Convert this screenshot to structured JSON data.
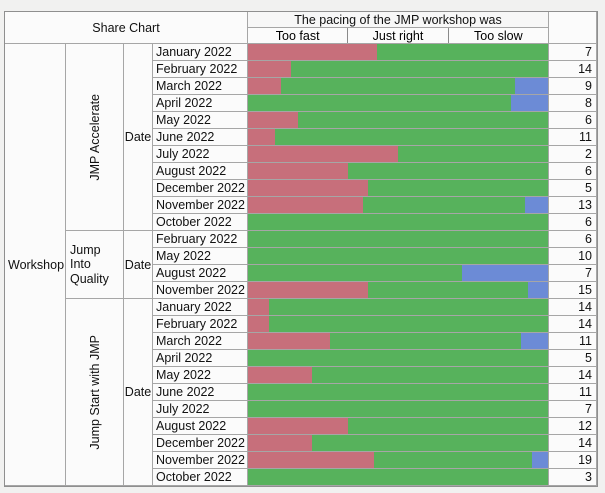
{
  "header": {
    "share_chart_label": "Share Chart",
    "question": "The pacing of the JMP workshop was"
  },
  "legend": [
    {
      "key": "too_fast",
      "label": "Too fast",
      "color": "#c76f7b"
    },
    {
      "key": "just_right",
      "label": "Just right",
      "color": "#57b25c"
    },
    {
      "key": "too_slow",
      "label": "Too slow",
      "color": "#6c8bd6"
    }
  ],
  "row_headers": {
    "workshop_label": "Workshop",
    "date_label": "Date"
  },
  "colors": {
    "too_fast": "#c76f7b",
    "just_right": "#57b25c",
    "too_slow": "#6c8bd6",
    "grid_border": "#a6a6a6",
    "background": "#f1f1f0",
    "cell_background": "#fbfbfb"
  },
  "chart_data": {
    "type": "bar",
    "subtype": "100-percent-stacked-horizontal-share-chart",
    "title": "Share Chart",
    "question": "The pacing of the JMP workshop was",
    "series_labels": [
      "Too fast",
      "Just right",
      "Too slow"
    ],
    "row_axis_labels": [
      "Workshop",
      "Date"
    ],
    "groups": [
      {
        "workshop": "JMP Accelerate",
        "date_label": "Date",
        "rows": [
          {
            "date": "January 2022",
            "values": [
              3,
              4,
              0
            ],
            "n": 7
          },
          {
            "date": "February 2022",
            "values": [
              2,
              12,
              0
            ],
            "n": 14
          },
          {
            "date": "March 2022",
            "values": [
              1,
              7,
              1
            ],
            "n": 9
          },
          {
            "date": "April 2022",
            "values": [
              0,
              7,
              1
            ],
            "n": 8
          },
          {
            "date": "May 2022",
            "values": [
              1,
              5,
              0
            ],
            "n": 6
          },
          {
            "date": "June 2022",
            "values": [
              1,
              10,
              0
            ],
            "n": 11
          },
          {
            "date": "July 2022",
            "values": [
              1,
              1,
              0
            ],
            "n": 2
          },
          {
            "date": "August 2022",
            "values": [
              2,
              4,
              0
            ],
            "n": 6
          },
          {
            "date": "December 2022",
            "values": [
              2,
              3,
              0
            ],
            "n": 5
          },
          {
            "date": "November 2022",
            "values": [
              5,
              7,
              1
            ],
            "n": 13
          },
          {
            "date": "October 2022",
            "values": [
              0,
              6,
              0
            ],
            "n": 6
          }
        ]
      },
      {
        "workshop": "Jump Into Quality",
        "date_label": "Date",
        "rows": [
          {
            "date": "February 2022",
            "values": [
              0,
              6,
              0
            ],
            "n": 6
          },
          {
            "date": "May 2022",
            "values": [
              0,
              10,
              0
            ],
            "n": 10
          },
          {
            "date": "August 2022",
            "values": [
              0,
              5,
              2
            ],
            "n": 7
          },
          {
            "date": "November 2022",
            "values": [
              6,
              8,
              1
            ],
            "n": 15
          }
        ]
      },
      {
        "workshop": "Jump Start with JMP",
        "date_label": "Date",
        "rows": [
          {
            "date": "January 2022",
            "values": [
              1,
              13,
              0
            ],
            "n": 14
          },
          {
            "date": "February 2022",
            "values": [
              1,
              13,
              0
            ],
            "n": 14
          },
          {
            "date": "March 2022",
            "values": [
              3,
              7,
              1
            ],
            "n": 11
          },
          {
            "date": "April 2022",
            "values": [
              0,
              5,
              0
            ],
            "n": 5
          },
          {
            "date": "May 2022",
            "values": [
              3,
              11,
              0
            ],
            "n": 14
          },
          {
            "date": "June 2022",
            "values": [
              0,
              11,
              0
            ],
            "n": 11
          },
          {
            "date": "July 2022",
            "values": [
              0,
              7,
              0
            ],
            "n": 7
          },
          {
            "date": "August 2022",
            "values": [
              4,
              8,
              0
            ],
            "n": 12
          },
          {
            "date": "December 2022",
            "values": [
              3,
              11,
              0
            ],
            "n": 14
          },
          {
            "date": "November 2022",
            "values": [
              8,
              10,
              1
            ],
            "n": 19
          },
          {
            "date": "October 2022",
            "values": [
              0,
              3,
              0
            ],
            "n": 3
          }
        ]
      }
    ]
  }
}
